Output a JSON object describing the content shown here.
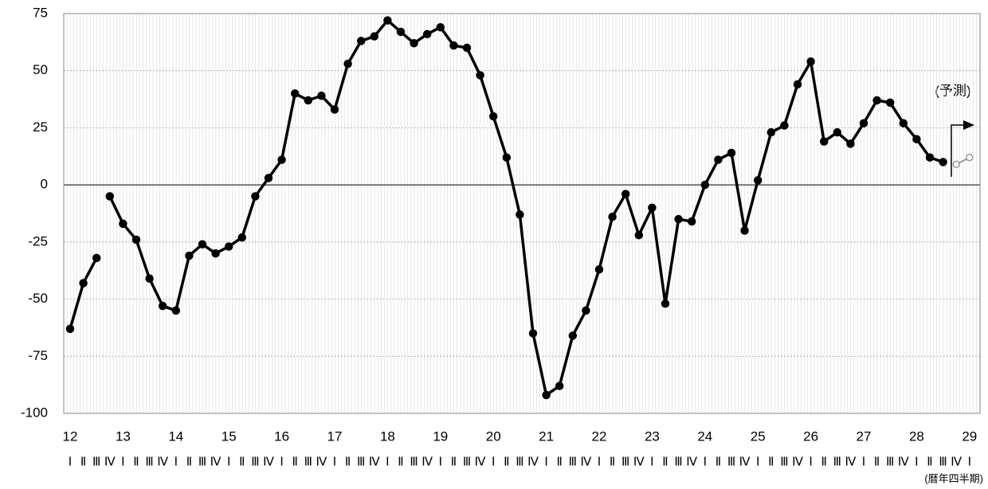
{
  "chart_data": {
    "type": "line",
    "annotation": "(予測)",
    "x_label": "(暦年四半期)",
    "year_labels": [
      12,
      13,
      14,
      15,
      16,
      17,
      18,
      19,
      20,
      21,
      22,
      23,
      24,
      25,
      26,
      27,
      28,
      29
    ],
    "categories": [
      "Ⅰ",
      "Ⅱ",
      "Ⅲ",
      "Ⅳ",
      "Ⅰ",
      "Ⅱ",
      "Ⅲ",
      "Ⅳ",
      "Ⅰ",
      "Ⅱ",
      "Ⅲ",
      "Ⅳ",
      "Ⅰ",
      "Ⅱ",
      "Ⅲ",
      "Ⅳ",
      "Ⅰ",
      "Ⅱ",
      "Ⅲ",
      "Ⅳ",
      "Ⅰ",
      "Ⅱ",
      "Ⅲ",
      "Ⅳ",
      "Ⅰ",
      "Ⅱ",
      "Ⅲ",
      "Ⅳ",
      "Ⅰ",
      "Ⅱ",
      "Ⅲ",
      "Ⅳ",
      "Ⅰ",
      "Ⅱ",
      "Ⅲ",
      "Ⅳ",
      "Ⅰ",
      "Ⅱ",
      "Ⅲ",
      "Ⅳ",
      "Ⅰ",
      "Ⅱ",
      "Ⅲ",
      "Ⅳ",
      "Ⅰ",
      "Ⅱ",
      "Ⅲ",
      "Ⅳ",
      "Ⅰ",
      "Ⅱ",
      "Ⅲ",
      "Ⅳ",
      "Ⅰ",
      "Ⅱ",
      "Ⅲ",
      "Ⅳ",
      "Ⅰ",
      "Ⅱ",
      "Ⅲ",
      "Ⅳ",
      "Ⅰ",
      "Ⅱ",
      "Ⅲ",
      "Ⅳ",
      "Ⅰ",
      "Ⅱ",
      "Ⅲ",
      "Ⅳ",
      "Ⅰ"
    ],
    "series": [
      {
        "color": "#000000",
        "values": [
          -63,
          -43,
          -32,
          null,
          null,
          null,
          null,
          null,
          null,
          null,
          null,
          null,
          null,
          null,
          null,
          null,
          null,
          null,
          null,
          null,
          null,
          null,
          null,
          null,
          null,
          null,
          null,
          null,
          null,
          null,
          null,
          null,
          null,
          null,
          null,
          null,
          null,
          null,
          null,
          null,
          null,
          null,
          null,
          null,
          null,
          null,
          null,
          null,
          null,
          null,
          null,
          null,
          null,
          null,
          null,
          null,
          null,
          null,
          null,
          null,
          null,
          null,
          null,
          null,
          null,
          null,
          null,
          null,
          null
        ]
      },
      {
        "color": "#000000",
        "values": [
          null,
          null,
          null,
          -5,
          -17,
          -24,
          -41,
          -53,
          -55,
          -31,
          -26,
          -30,
          -27,
          -23,
          -5,
          3,
          11,
          40,
          37,
          39,
          33,
          53,
          63,
          65,
          72,
          67,
          62,
          66,
          69,
          61,
          60,
          48,
          30,
          12,
          -13,
          -65,
          -92,
          -88,
          -66,
          -55,
          -37,
          -14,
          -4,
          -22,
          -10,
          -52,
          -15,
          -16,
          0,
          11,
          14,
          -20,
          2,
          23,
          26,
          44,
          54,
          19,
          23,
          18,
          27,
          37,
          36,
          27,
          20,
          12,
          10,
          null,
          null
        ]
      },
      {
        "color": "#999999",
        "forecast": true,
        "values": [
          null,
          null,
          null,
          null,
          null,
          null,
          null,
          null,
          null,
          null,
          null,
          null,
          null,
          null,
          null,
          null,
          null,
          null,
          null,
          null,
          null,
          null,
          null,
          null,
          null,
          null,
          null,
          null,
          null,
          null,
          null,
          null,
          null,
          null,
          null,
          null,
          null,
          null,
          null,
          null,
          null,
          null,
          null,
          null,
          null,
          null,
          null,
          null,
          null,
          null,
          null,
          null,
          null,
          null,
          null,
          null,
          null,
          null,
          null,
          null,
          null,
          null,
          null,
          null,
          null,
          null,
          null,
          9,
          12
        ]
      }
    ],
    "ylim": [
      -100,
      75
    ],
    "yticks": [
      -100,
      -75,
      -50,
      -25,
      0,
      25,
      50,
      75
    ],
    "grid": true
  }
}
